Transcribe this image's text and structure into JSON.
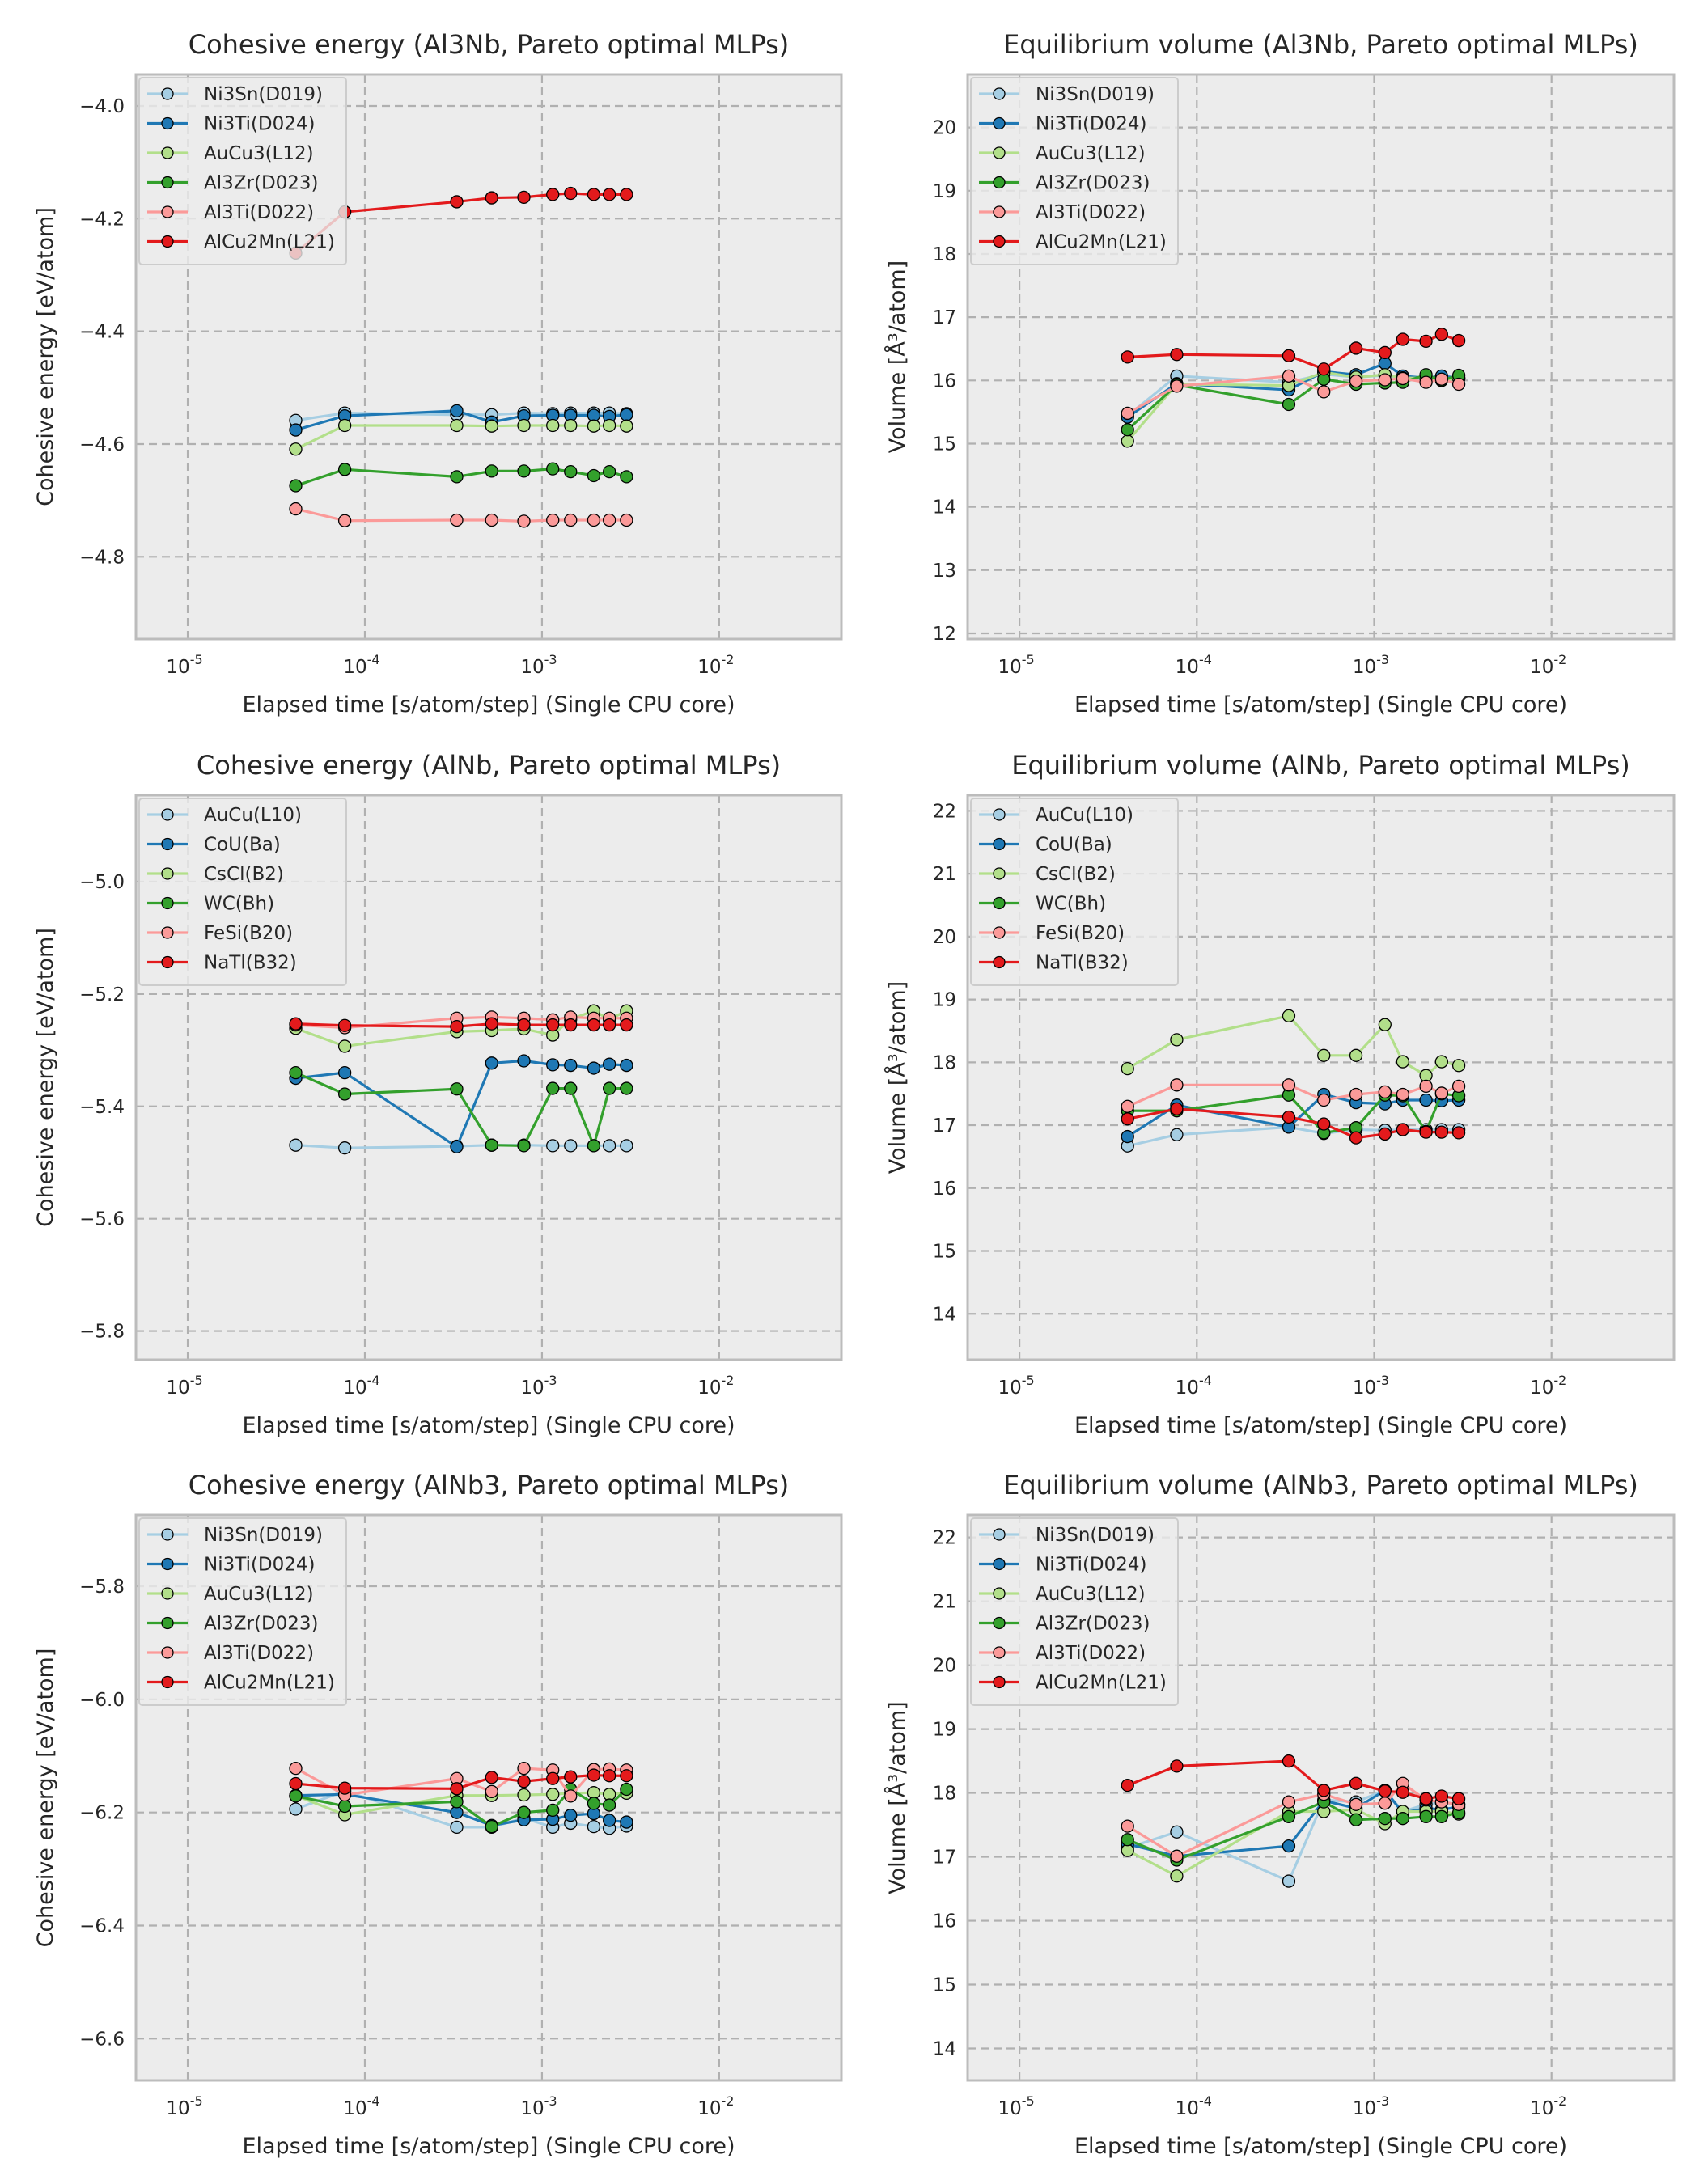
{
  "figure": {
    "layout": "3 rows x 2 columns",
    "background": "#ffffff",
    "axes_facecolor": "#ececec",
    "grid_color": "#b0b0b0",
    "spine_color": "#bcbcbc"
  },
  "chart_data": [
    {
      "type": "line",
      "title": "Cohesive energy (Al3Nb, Pareto optimal MLPs)",
      "xlabel": "Elapsed time [s/atom/step] (Single CPU core)",
      "ylabel": "Cohesive energy [eV/atom]",
      "xscale": "log",
      "xlim": [
        5.1e-06,
        0.049
      ],
      "ylim": [
        -4.946,
        -3.944
      ],
      "xticks": [
        1e-05,
        0.0001,
        0.001,
        0.01
      ],
      "xtick_labels": [
        [
          "10",
          "-5"
        ],
        [
          "10",
          "-4"
        ],
        [
          "10",
          "-3"
        ],
        [
          "10",
          "-2"
        ]
      ],
      "yticks": [
        -4.0,
        -4.2,
        -4.4,
        -4.6,
        -4.8
      ],
      "ytick_labels": [
        "−4.0",
        "−4.2",
        "−4.4",
        "−4.6",
        "−4.8"
      ],
      "grid": true,
      "legend_position": "top-left",
      "x": [
        4.07e-05,
        7.7e-05,
        0.00033,
        0.00052,
        0.00079,
        0.00115,
        0.00145,
        0.00196,
        0.0024,
        0.003
      ],
      "series": [
        {
          "name": "Ni3Sn(D019)",
          "color": "#a6cee3",
          "values": [
            -4.558,
            -4.545,
            -4.548,
            -4.548,
            -4.545,
            -4.546,
            -4.545,
            -4.545,
            -4.545,
            -4.546
          ]
        },
        {
          "name": "Ni3Ti(D024)",
          "color": "#1f78b4",
          "values": [
            -4.575,
            -4.55,
            -4.541,
            -4.561,
            -4.55,
            -4.549,
            -4.549,
            -4.549,
            -4.551,
            -4.548
          ]
        },
        {
          "name": "AuCu3(L12)",
          "color": "#b2df8a",
          "values": [
            -4.609,
            -4.567,
            -4.567,
            -4.568,
            -4.567,
            -4.567,
            -4.567,
            -4.568,
            -4.567,
            -4.568
          ]
        },
        {
          "name": "Al3Zr(D023)",
          "color": "#33a02c",
          "values": [
            -4.674,
            -4.645,
            -4.658,
            -4.648,
            -4.648,
            -4.644,
            -4.649,
            -4.656,
            -4.649,
            -4.658
          ]
        },
        {
          "name": "Al3Ti(D022)",
          "color": "#fb9a99",
          "values": [
            -4.715,
            -4.736,
            -4.735,
            -4.735,
            -4.737,
            -4.735,
            -4.735,
            -4.735,
            -4.735,
            -4.735
          ]
        },
        {
          "name": "AlCu2Mn(L21)",
          "color": "#e31a1c",
          "values": [
            -4.261,
            -4.188,
            -4.17,
            -4.163,
            -4.162,
            -4.157,
            -4.155,
            -4.157,
            -4.157,
            -4.157
          ]
        }
      ]
    },
    {
      "type": "line",
      "title": "Equilibrium volume (Al3Nb, Pareto optimal MLPs)",
      "xlabel": "Elapsed time [s/atom/step] (Single CPU core)",
      "ylabel": "Volume [Å³/atom]",
      "xscale": "log",
      "xlim": [
        5.1e-06,
        0.049
      ],
      "ylim": [
        11.91,
        20.84
      ],
      "xticks": [
        1e-05,
        0.0001,
        0.001,
        0.01
      ],
      "xtick_labels": [
        [
          "10",
          "-5"
        ],
        [
          "10",
          "-4"
        ],
        [
          "10",
          "-3"
        ],
        [
          "10",
          "-2"
        ]
      ],
      "yticks": [
        12,
        13,
        14,
        15,
        16,
        17,
        18,
        19,
        20
      ],
      "ytick_labels": [
        "12",
        "13",
        "14",
        "15",
        "16",
        "17",
        "18",
        "19",
        "20"
      ],
      "grid": true,
      "legend_position": "top-left",
      "x": [
        4.07e-05,
        7.7e-05,
        0.00033,
        0.00052,
        0.00079,
        0.00115,
        0.00145,
        0.00196,
        0.0024,
        0.003
      ],
      "series": [
        {
          "name": "Ni3Sn(D019)",
          "color": "#a6cee3",
          "values": [
            15.44,
            16.07,
            15.97,
            16.1,
            16.05,
            16.08,
            16.04,
            16.02,
            16.05,
            16.03
          ]
        },
        {
          "name": "Ni3Ti(D024)",
          "color": "#1f78b4",
          "values": [
            15.42,
            15.95,
            15.85,
            16.14,
            16.09,
            16.27,
            16.07,
            16.04,
            16.07,
            16.04
          ]
        },
        {
          "name": "AuCu3(L12)",
          "color": "#b2df8a",
          "values": [
            15.04,
            15.94,
            15.92,
            16.13,
            16.05,
            16.09,
            16.04,
            16.04,
            16.0,
            16.03
          ]
        },
        {
          "name": "Al3Zr(D023)",
          "color": "#33a02c",
          "values": [
            15.22,
            15.93,
            15.62,
            16.02,
            15.94,
            15.96,
            15.97,
            16.09,
            16.0,
            16.08
          ]
        },
        {
          "name": "Al3Ti(D022)",
          "color": "#fb9a99",
          "values": [
            15.48,
            15.91,
            16.07,
            15.82,
            15.99,
            16.01,
            16.03,
            15.97,
            16.02,
            15.94
          ]
        },
        {
          "name": "AlCu2Mn(L21)",
          "color": "#e31a1c",
          "values": [
            16.37,
            16.41,
            16.39,
            16.18,
            16.51,
            16.44,
            16.65,
            16.62,
            16.73,
            16.63
          ]
        }
      ]
    },
    {
      "type": "line",
      "title": "Cohesive energy (AlNb, Pareto optimal MLPs)",
      "xlabel": "Elapsed time [s/atom/step] (Single CPU core)",
      "ylabel": "Cohesive energy [eV/atom]",
      "xscale": "log",
      "xlim": [
        5.1e-06,
        0.049
      ],
      "ylim": [
        -5.851,
        -4.846
      ],
      "xticks": [
        1e-05,
        0.0001,
        0.001,
        0.01
      ],
      "xtick_labels": [
        [
          "10",
          "-5"
        ],
        [
          "10",
          "-4"
        ],
        [
          "10",
          "-3"
        ],
        [
          "10",
          "-2"
        ]
      ],
      "yticks": [
        -5.0,
        -5.2,
        -5.4,
        -5.6,
        -5.8
      ],
      "ytick_labels": [
        "−5.0",
        "−5.2",
        "−5.4",
        "−5.6",
        "−5.8"
      ],
      "grid": true,
      "legend_position": "top-left",
      "x": [
        4.07e-05,
        7.7e-05,
        0.00033,
        0.00052,
        0.00079,
        0.00115,
        0.00145,
        0.00196,
        0.0024,
        0.003
      ],
      "series": [
        {
          "name": "AuCu(L10)",
          "color": "#a6cee3",
          "values": [
            -5.469,
            -5.474,
            -5.471,
            -5.469,
            -5.469,
            -5.47,
            -5.47,
            -5.47,
            -5.47,
            -5.47
          ]
        },
        {
          "name": "CoU(Ba)",
          "color": "#1f78b4",
          "values": [
            -5.35,
            -5.34,
            -5.472,
            -5.323,
            -5.319,
            -5.326,
            -5.327,
            -5.332,
            -5.325,
            -5.327
          ]
        },
        {
          "name": "CsCl(B2)",
          "color": "#b2df8a",
          "values": [
            -5.261,
            -5.293,
            -5.267,
            -5.265,
            -5.262,
            -5.273,
            -5.245,
            -5.23,
            -5.245,
            -5.23
          ]
        },
        {
          "name": "WC(Bh)",
          "color": "#33a02c",
          "values": [
            -5.34,
            -5.378,
            -5.369,
            -5.469,
            -5.47,
            -5.368,
            -5.368,
            -5.47,
            -5.368,
            -5.368
          ]
        },
        {
          "name": "FeSi(B20)",
          "color": "#fb9a99",
          "values": [
            -5.255,
            -5.26,
            -5.243,
            -5.241,
            -5.243,
            -5.246,
            -5.241,
            -5.243,
            -5.243,
            -5.243
          ]
        },
        {
          "name": "NaTl(B32)",
          "color": "#e31a1c",
          "values": [
            -5.253,
            -5.256,
            -5.258,
            -5.253,
            -5.255,
            -5.255,
            -5.255,
            -5.255,
            -5.255,
            -5.255
          ]
        }
      ]
    },
    {
      "type": "line",
      "title": "Equilibrium volume (AlNb, Pareto optimal MLPs)",
      "xlabel": "Elapsed time [s/atom/step] (Single CPU core)",
      "ylabel": "Volume [Å³/atom]",
      "xscale": "log",
      "xlim": [
        5.1e-06,
        0.049
      ],
      "ylim": [
        13.27,
        22.25
      ],
      "xticks": [
        1e-05,
        0.0001,
        0.001,
        0.01
      ],
      "xtick_labels": [
        [
          "10",
          "-5"
        ],
        [
          "10",
          "-4"
        ],
        [
          "10",
          "-3"
        ],
        [
          "10",
          "-2"
        ]
      ],
      "yticks": [
        14,
        15,
        16,
        17,
        18,
        19,
        20,
        21,
        22
      ],
      "ytick_labels": [
        "14",
        "15",
        "16",
        "17",
        "18",
        "19",
        "20",
        "21",
        "22"
      ],
      "grid": true,
      "legend_position": "top-left",
      "x": [
        4.07e-05,
        7.7e-05,
        0.00033,
        0.00052,
        0.00079,
        0.00115,
        0.00145,
        0.00196,
        0.0024,
        0.003
      ],
      "series": [
        {
          "name": "AuCu(L10)",
          "color": "#a6cee3",
          "values": [
            16.67,
            16.85,
            16.97,
            16.87,
            16.93,
            16.92,
            16.93,
            16.93,
            16.93,
            16.93
          ]
        },
        {
          "name": "CoU(Ba)",
          "color": "#1f78b4",
          "values": [
            16.82,
            17.32,
            16.97,
            17.49,
            17.36,
            17.34,
            17.4,
            17.4,
            17.39,
            17.4
          ]
        },
        {
          "name": "CsCl(B2)",
          "color": "#b2df8a",
          "values": [
            17.9,
            18.36,
            18.74,
            18.11,
            18.11,
            18.6,
            18.01,
            17.79,
            18.01,
            17.95
          ]
        },
        {
          "name": "WC(Bh)",
          "color": "#33a02c",
          "values": [
            17.23,
            17.23,
            17.48,
            16.88,
            16.96,
            17.48,
            17.47,
            16.9,
            17.5,
            17.47
          ]
        },
        {
          "name": "FeSi(B20)",
          "color": "#fb9a99",
          "values": [
            17.3,
            17.64,
            17.64,
            17.4,
            17.49,
            17.53,
            17.49,
            17.62,
            17.51,
            17.62
          ]
        },
        {
          "name": "NaTl(B32)",
          "color": "#e31a1c",
          "values": [
            17.1,
            17.26,
            17.13,
            17.02,
            16.8,
            16.86,
            16.93,
            16.89,
            16.89,
            16.88
          ]
        }
      ]
    },
    {
      "type": "line",
      "title": "Cohesive energy (AlNb3, Pareto optimal MLPs)",
      "xlabel": "Elapsed time [s/atom/step] (Single CPU core)",
      "ylabel": "Cohesive energy [eV/atom]",
      "xscale": "log",
      "xlim": [
        5.1e-06,
        0.049
      ],
      "ylim": [
        -6.674,
        -5.674
      ],
      "xticks": [
        1e-05,
        0.0001,
        0.001,
        0.01
      ],
      "xtick_labels": [
        [
          "10",
          "-5"
        ],
        [
          "10",
          "-4"
        ],
        [
          "10",
          "-3"
        ],
        [
          "10",
          "-2"
        ]
      ],
      "yticks": [
        -5.8,
        -6.0,
        -6.2,
        -6.4,
        -6.6
      ],
      "ytick_labels": [
        "−5.8",
        "−6.0",
        "−6.2",
        "−6.4",
        "−6.6"
      ],
      "grid": true,
      "legend_position": "top-left",
      "x": [
        4.07e-05,
        7.7e-05,
        0.00033,
        0.00052,
        0.00079,
        0.00115,
        0.00145,
        0.00196,
        0.0024,
        0.003
      ],
      "series": [
        {
          "name": "Ni3Sn(D019)",
          "color": "#a6cee3",
          "values": [
            -6.194,
            -6.162,
            -6.226,
            -6.226,
            -6.21,
            -6.226,
            -6.219,
            -6.225,
            -6.228,
            -6.224
          ]
        },
        {
          "name": "Ni3Ti(D024)",
          "color": "#1f78b4",
          "values": [
            -6.17,
            -6.168,
            -6.2,
            -6.223,
            -6.213,
            -6.212,
            -6.205,
            -6.202,
            -6.214,
            -6.217
          ]
        },
        {
          "name": "AuCu3(L12)",
          "color": "#b2df8a",
          "values": [
            -6.17,
            -6.204,
            -6.17,
            -6.17,
            -6.169,
            -6.168,
            -6.166,
            -6.165,
            -6.168,
            -6.166
          ]
        },
        {
          "name": "Al3Zr(D023)",
          "color": "#33a02c",
          "values": [
            -6.171,
            -6.189,
            -6.181,
            -6.225,
            -6.2,
            -6.196,
            -6.159,
            -6.184,
            -6.187,
            -6.159
          ]
        },
        {
          "name": "Al3Ti(D022)",
          "color": "#fb9a99",
          "values": [
            -6.122,
            -6.169,
            -6.14,
            -6.163,
            -6.122,
            -6.125,
            -6.171,
            -6.124,
            -6.123,
            -6.125
          ]
        },
        {
          "name": "AlCu2Mn(L21)",
          "color": "#e31a1c",
          "values": [
            -6.149,
            -6.157,
            -6.158,
            -6.138,
            -6.145,
            -6.14,
            -6.137,
            -6.134,
            -6.135,
            -6.135
          ]
        }
      ]
    },
    {
      "type": "line",
      "title": "Equilibrium volume (AlNb3, Pareto optimal MLPs)",
      "xlabel": "Elapsed time [s/atom/step] (Single CPU core)",
      "ylabel": "Volume [Å³/atom]",
      "xscale": "log",
      "xlim": [
        5.1e-06,
        0.049
      ],
      "ylim": [
        13.5,
        22.35
      ],
      "xticks": [
        1e-05,
        0.0001,
        0.001,
        0.01
      ],
      "xtick_labels": [
        [
          "10",
          "-5"
        ],
        [
          "10",
          "-4"
        ],
        [
          "10",
          "-3"
        ],
        [
          "10",
          "-2"
        ]
      ],
      "yticks": [
        14,
        15,
        16,
        17,
        18,
        19,
        20,
        21,
        22
      ],
      "ytick_labels": [
        "14",
        "15",
        "16",
        "17",
        "18",
        "19",
        "20",
        "21",
        "22"
      ],
      "grid": true,
      "legend_position": "top-left",
      "x": [
        4.07e-05,
        7.7e-05,
        0.00033,
        0.00052,
        0.00079,
        0.00115,
        0.00145,
        0.00196,
        0.0024,
        0.003
      ],
      "series": [
        {
          "name": "Ni3Sn(D019)",
          "color": "#a6cee3",
          "values": [
            17.14,
            17.39,
            16.62,
            17.89,
            17.86,
            18.04,
            17.71,
            17.82,
            17.85,
            17.82
          ]
        },
        {
          "name": "Ni3Ti(D024)",
          "color": "#1f78b4",
          "values": [
            17.2,
            17.01,
            17.17,
            17.88,
            17.76,
            18.04,
            17.69,
            17.76,
            17.74,
            17.78
          ]
        },
        {
          "name": "AuCu3(L12)",
          "color": "#b2df8a",
          "values": [
            17.1,
            16.7,
            17.71,
            17.71,
            17.74,
            17.52,
            17.71,
            17.71,
            17.71,
            17.67
          ]
        },
        {
          "name": "Al3Zr(D023)",
          "color": "#33a02c",
          "values": [
            17.27,
            16.95,
            17.63,
            17.86,
            17.58,
            17.6,
            17.6,
            17.63,
            17.63,
            17.69
          ]
        },
        {
          "name": "Al3Ti(D022)",
          "color": "#fb9a99",
          "values": [
            17.48,
            17.01,
            17.86,
            17.98,
            17.82,
            17.84,
            18.15,
            17.89,
            17.86,
            17.82
          ]
        },
        {
          "name": "AlCu2Mn(L21)",
          "color": "#e31a1c",
          "values": [
            18.12,
            18.42,
            18.5,
            18.04,
            18.15,
            18.03,
            18.01,
            17.91,
            17.95,
            17.91
          ]
        }
      ]
    }
  ]
}
